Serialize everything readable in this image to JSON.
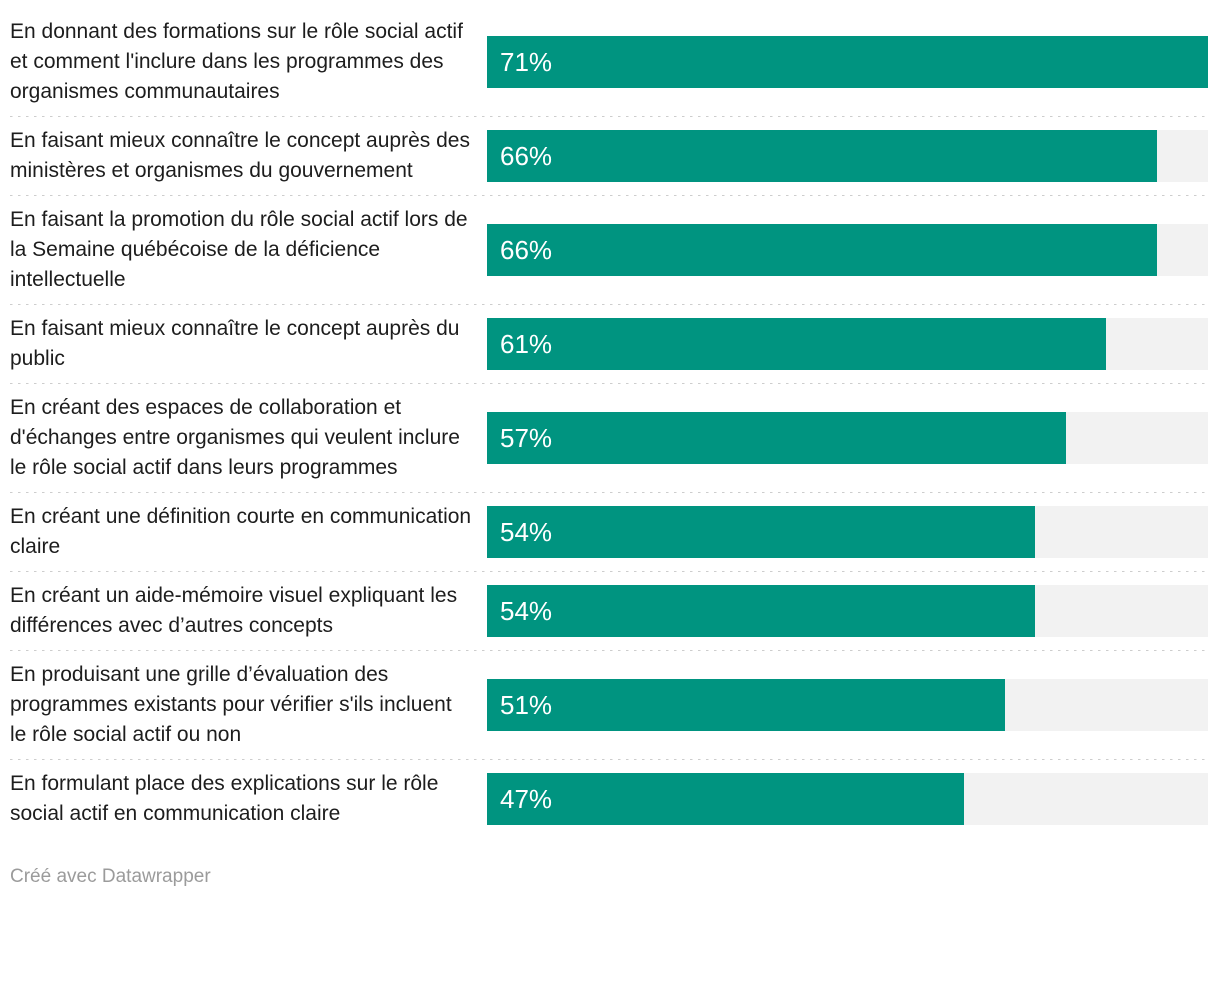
{
  "chart_data": {
    "type": "bar",
    "orientation": "horizontal",
    "title": "",
    "xlabel": "",
    "ylabel": "",
    "unit": "%",
    "axis_max": 71,
    "grid": false,
    "legend": false,
    "bar_color": "#009480",
    "track_color": "#f2f2f2",
    "value_label_color": "#ffffff",
    "categories": [
      "En donnant des formations sur le rôle social actif et comment l'inclure dans les programmes des organismes communautaires",
      "En faisant mieux connaître le concept auprès des ministères et organismes du gouvernement",
      "En faisant la promotion du rôle social actif lors de la Semaine québécoise de la déficience intellectuelle",
      "En faisant mieux connaître le concept auprès du public",
      "En créant des espaces de collaboration et d'échanges entre organismes qui veulent inclure le rôle social actif dans leurs programmes",
      "En créant une définition courte en communication claire",
      "En créant un aide-mémoire visuel expliquant les différences avec d’autres concepts",
      "En produisant une grille d’évaluation des programmes existants pour vérifier s'ils incluent le rôle social actif ou non",
      "En formulant place des explications sur le rôle social actif en communication claire"
    ],
    "values": [
      71,
      66,
      66,
      61,
      57,
      54,
      54,
      51,
      47
    ],
    "rows": [
      {
        "label": "En donnant des formations sur le rôle social actif et comment l'inclure dans les programmes des organismes communautaires",
        "value": 71,
        "value_label": "71%"
      },
      {
        "label": "En faisant mieux connaître le concept auprès des ministères et organismes du gouvernement",
        "value": 66,
        "value_label": "66%"
      },
      {
        "label": "En faisant la promotion du rôle social actif lors de la Semaine québécoise de la déficience intellectuelle",
        "value": 66,
        "value_label": "66%"
      },
      {
        "label": "En faisant mieux connaître le concept auprès du public",
        "value": 61,
        "value_label": "61%"
      },
      {
        "label": "En créant des espaces de collaboration et d'échanges entre organismes qui veulent inclure le rôle social actif dans leurs programmes",
        "value": 57,
        "value_label": "57%"
      },
      {
        "label": "En créant une définition courte en communication claire",
        "value": 54,
        "value_label": "54%"
      },
      {
        "label": "En créant un aide-mémoire visuel expliquant les différences avec d’autres concepts",
        "value": 54,
        "value_label": "54%"
      },
      {
        "label": "En produisant une grille d’évaluation des programmes existants pour vérifier s'ils incluent le rôle social actif ou non",
        "value": 51,
        "value_label": "51%"
      },
      {
        "label": "En formulant place des explications sur le rôle social actif en communication claire",
        "value": 47,
        "value_label": "47%"
      }
    ]
  },
  "footer": {
    "credit": "Créé avec Datawrapper"
  }
}
